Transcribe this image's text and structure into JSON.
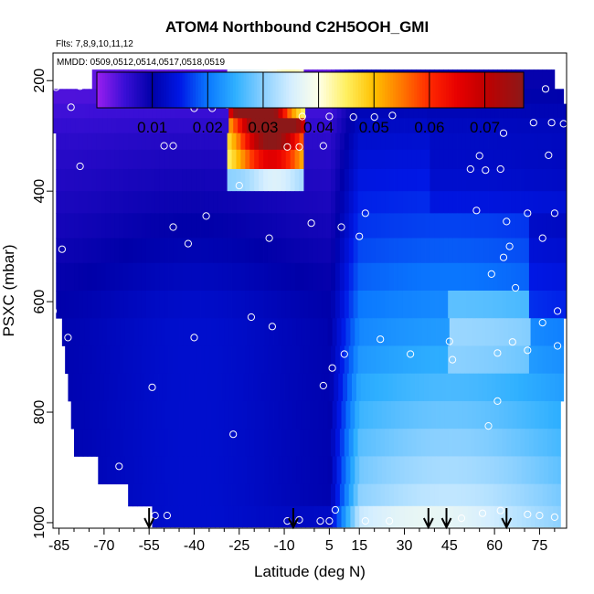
{
  "chart_data": {
    "type": "heatmap",
    "title": "ATOM4 Northbound C2H5OOH_GMI",
    "subtitle_flights": "Flts: 7,8,9,10,11,12",
    "subtitle_dates": "MMDD: 0509,0512,0514,0517,0518,0519",
    "xlabel": "Latitude (deg N)",
    "ylabel": "PSXC (mbar)",
    "xlim": [
      -87,
      84
    ],
    "ylim": [
      1010,
      150
    ],
    "y_reversed": true,
    "x_ticks": [
      -85,
      -70,
      -55,
      -40,
      -25,
      -10,
      5,
      15,
      30,
      45,
      60,
      75
    ],
    "x_minor_ticks": [
      -80,
      -75,
      -65,
      -60,
      -50,
      -45,
      -35,
      -30,
      -20,
      -15,
      0,
      10,
      20,
      25,
      35,
      40,
      50,
      55,
      65,
      70,
      80
    ],
    "y_ticks": [
      200,
      400,
      600,
      800,
      1000
    ],
    "colorbar": {
      "ticks": [
        0.01,
        0.02,
        0.03,
        0.04,
        0.05,
        0.06,
        0.07
      ],
      "range": [
        0.0,
        0.077
      ],
      "stops": [
        {
          "v": 0.0,
          "c": "#9a1ef0"
        },
        {
          "v": 0.005,
          "c": "#3a0fd6"
        },
        {
          "v": 0.01,
          "c": "#0000a8"
        },
        {
          "v": 0.015,
          "c": "#0018e6"
        },
        {
          "v": 0.02,
          "c": "#0a78ff"
        },
        {
          "v": 0.025,
          "c": "#2fb0ff"
        },
        {
          "v": 0.03,
          "c": "#8ad0ff"
        },
        {
          "v": 0.035,
          "c": "#d4eeff"
        },
        {
          "v": 0.04,
          "c": "#ffffe8"
        },
        {
          "v": 0.045,
          "c": "#fff060"
        },
        {
          "v": 0.05,
          "c": "#ffc000"
        },
        {
          "v": 0.055,
          "c": "#ff7800"
        },
        {
          "v": 0.06,
          "c": "#ff2800"
        },
        {
          "v": 0.065,
          "c": "#e80000"
        },
        {
          "v": 0.07,
          "c": "#c00000"
        },
        {
          "v": 0.077,
          "c": "#8c1818"
        }
      ]
    },
    "layers": [
      {
        "p_top": 180,
        "p_bot": 215,
        "x0": -74,
        "x1": 80
      },
      {
        "p_top": 215,
        "p_bot": 242,
        "x0": -87,
        "x1": 83
      },
      {
        "p_top": 242,
        "p_bot": 268,
        "x0": -87,
        "x1": 84
      },
      {
        "p_top": 268,
        "p_bot": 295,
        "x0": -87,
        "x1": 84
      },
      {
        "p_top": 295,
        "p_bot": 325,
        "x0": -86,
        "x1": 84
      },
      {
        "p_top": 325,
        "p_bot": 360,
        "x0": -86,
        "x1": 84
      },
      {
        "p_top": 360,
        "p_bot": 400,
        "x0": -86,
        "x1": 84
      },
      {
        "p_top": 400,
        "p_bot": 440,
        "x0": -86,
        "x1": 84
      },
      {
        "p_top": 440,
        "p_bot": 485,
        "x0": -86,
        "x1": 84
      },
      {
        "p_top": 485,
        "p_bot": 530,
        "x0": -86,
        "x1": 84
      },
      {
        "p_top": 530,
        "p_bot": 580,
        "x0": -86,
        "x1": 84
      },
      {
        "p_top": 580,
        "p_bot": 630,
        "x0": -86,
        "x1": 84
      },
      {
        "p_top": 630,
        "p_bot": 680,
        "x0": -84,
        "x1": 83
      },
      {
        "p_top": 680,
        "p_bot": 730,
        "x0": -83,
        "x1": 83
      },
      {
        "p_top": 730,
        "p_bot": 780,
        "x0": -82,
        "x1": 83
      },
      {
        "p_top": 780,
        "p_bot": 830,
        "x0": -81,
        "x1": 82
      },
      {
        "p_top": 830,
        "p_bot": 880,
        "x0": -80,
        "x1": 82
      },
      {
        "p_top": 880,
        "p_bot": 930,
        "x0": -72,
        "x1": 82
      },
      {
        "p_top": 930,
        "p_bot": 970,
        "x0": -62,
        "x1": 82
      },
      {
        "p_top": 970,
        "p_bot": 1008,
        "x0": -54,
        "x1": 82
      }
    ],
    "obs_points": [
      {
        "lat": -86,
        "p": 212
      },
      {
        "lat": -78,
        "p": 210
      },
      {
        "lat": -81,
        "p": 248
      },
      {
        "lat": -40,
        "p": 250
      },
      {
        "lat": -34,
        "p": 250
      },
      {
        "lat": -29,
        "p": 244
      },
      {
        "lat": -4,
        "p": 265
      },
      {
        "lat": 5,
        "p": 265
      },
      {
        "lat": 13,
        "p": 266
      },
      {
        "lat": 20,
        "p": 266
      },
      {
        "lat": 26,
        "p": 263
      },
      {
        "lat": 52,
        "p": 207
      },
      {
        "lat": 60,
        "p": 222
      },
      {
        "lat": 68,
        "p": 215
      },
      {
        "lat": 77,
        "p": 215
      },
      {
        "lat": 58,
        "p": 230
      },
      {
        "lat": 66,
        "p": 232
      },
      {
        "lat": 73,
        "p": 276
      },
      {
        "lat": 79,
        "p": 276
      },
      {
        "lat": 83,
        "p": 278
      },
      {
        "lat": 63,
        "p": 295
      },
      {
        "lat": 78,
        "p": 335
      },
      {
        "lat": 55,
        "p": 336
      },
      {
        "lat": -50,
        "p": 318
      },
      {
        "lat": -47,
        "p": 318
      },
      {
        "lat": -78,
        "p": 355
      },
      {
        "lat": -9,
        "p": 320
      },
      {
        "lat": -5,
        "p": 320
      },
      {
        "lat": 3,
        "p": 318
      },
      {
        "lat": 52,
        "p": 360
      },
      {
        "lat": 57,
        "p": 362
      },
      {
        "lat": 62,
        "p": 360
      },
      {
        "lat": -25,
        "p": 390
      },
      {
        "lat": -36,
        "p": 445
      },
      {
        "lat": -47,
        "p": 465
      },
      {
        "lat": 17,
        "p": 440
      },
      {
        "lat": 54,
        "p": 435
      },
      {
        "lat": 71,
        "p": 440
      },
      {
        "lat": 80,
        "p": 440
      },
      {
        "lat": 64,
        "p": 455
      },
      {
        "lat": -84,
        "p": 505
      },
      {
        "lat": -42,
        "p": 495
      },
      {
        "lat": -15,
        "p": 485
      },
      {
        "lat": -1,
        "p": 458
      },
      {
        "lat": 9,
        "p": 465
      },
      {
        "lat": 15,
        "p": 482
      },
      {
        "lat": 76,
        "p": 485
      },
      {
        "lat": 65,
        "p": 500
      },
      {
        "lat": 63,
        "p": 520
      },
      {
        "lat": 59,
        "p": 550
      },
      {
        "lat": 67,
        "p": 575
      },
      {
        "lat": -87,
        "p": 617
      },
      {
        "lat": -21,
        "p": 628
      },
      {
        "lat": -14,
        "p": 645
      },
      {
        "lat": 81,
        "p": 617
      },
      {
        "lat": 76,
        "p": 638
      },
      {
        "lat": -82,
        "p": 665
      },
      {
        "lat": -40,
        "p": 665
      },
      {
        "lat": 10,
        "p": 695
      },
      {
        "lat": 22,
        "p": 668
      },
      {
        "lat": 32,
        "p": 695
      },
      {
        "lat": 45,
        "p": 672
      },
      {
        "lat": 46,
        "p": 705
      },
      {
        "lat": 61,
        "p": 693
      },
      {
        "lat": 66,
        "p": 673
      },
      {
        "lat": 71,
        "p": 688
      },
      {
        "lat": 81,
        "p": 680
      },
      {
        "lat": 6,
        "p": 720
      },
      {
        "lat": 3,
        "p": 752
      },
      {
        "lat": -54,
        "p": 755
      },
      {
        "lat": 61,
        "p": 780
      },
      {
        "lat": -83,
        "p": 815
      },
      {
        "lat": -27,
        "p": 840
      },
      {
        "lat": 58,
        "p": 825
      },
      {
        "lat": -65,
        "p": 898
      },
      {
        "lat": -65,
        "p": 952
      },
      {
        "lat": -53,
        "p": 987
      },
      {
        "lat": -49,
        "p": 987
      },
      {
        "lat": -9,
        "p": 997
      },
      {
        "lat": -5,
        "p": 995
      },
      {
        "lat": 2,
        "p": 997
      },
      {
        "lat": 5,
        "p": 997
      },
      {
        "lat": 17,
        "p": 997
      },
      {
        "lat": 25,
        "p": 997
      },
      {
        "lat": 49,
        "p": 992
      },
      {
        "lat": 56,
        "p": 983
      },
      {
        "lat": 62,
        "p": 978
      },
      {
        "lat": 71,
        "p": 985
      },
      {
        "lat": 75,
        "p": 987
      },
      {
        "lat": 80,
        "p": 990
      },
      {
        "lat": 7,
        "p": 977
      }
    ],
    "markers": [
      -55,
      -7,
      38,
      44,
      64
    ]
  }
}
